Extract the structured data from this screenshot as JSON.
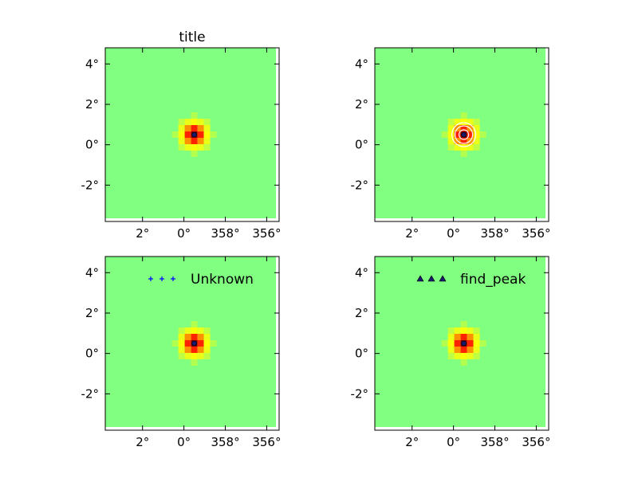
{
  "chart_data": [
    {
      "type": "heatmap",
      "title": "title",
      "xticks": [
        "2°",
        "0°",
        "358°",
        "356°"
      ],
      "yticks": [
        "4°",
        "2°",
        "0°",
        "-2°"
      ],
      "background_color": "#80ff80",
      "source_center_deg": [
        359.5,
        0.5
      ],
      "overlay": null,
      "legend": null
    },
    {
      "type": "heatmap",
      "title": "",
      "xticks": [
        "2°",
        "0°",
        "358°",
        "356°"
      ],
      "yticks": [
        "4°",
        "2°",
        "0°",
        "-2°"
      ],
      "background_color": "#80ff80",
      "source_center_deg": [
        359.5,
        0.5
      ],
      "overlay": "contour",
      "legend": null
    },
    {
      "type": "heatmap",
      "title": "",
      "xticks": [
        "2°",
        "0°",
        "358°",
        "356°"
      ],
      "yticks": [
        "4°",
        "2°",
        "0°",
        "-2°"
      ],
      "background_color": "#80ff80",
      "source_center_deg": [
        359.5,
        0.5
      ],
      "overlay": "marker",
      "legend": {
        "label": "Unknown",
        "marker": "plus",
        "color": "#0000ff",
        "placement": "top-right"
      }
    },
    {
      "type": "heatmap",
      "title": "",
      "xticks": [
        "2°",
        "0°",
        "358°",
        "356°"
      ],
      "yticks": [
        "4°",
        "2°",
        "0°",
        "-2°"
      ],
      "background_color": "#80ff80",
      "source_center_deg": [
        359.5,
        0.5
      ],
      "overlay": "marker",
      "legend": {
        "label": "find_peak",
        "marker": "triangle",
        "color": "#191970",
        "placement": "top-right"
      }
    }
  ]
}
